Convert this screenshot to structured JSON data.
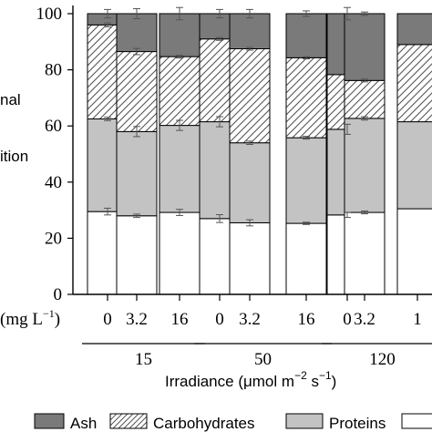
{
  "chart_data": {
    "type": "bar",
    "stacked": true,
    "percent_stacked": true,
    "ylim": [
      0,
      100
    ],
    "yticks": [
      0,
      20,
      40,
      60,
      80,
      100
    ],
    "ylabel_fragments": [
      "nal",
      "ition"
    ],
    "x_row1_label": "(mg L",
    "x_row1_label_sup": "−1",
    "x_row1_label_end": ")",
    "categories": [
      "0",
      "3.2",
      "16",
      "0",
      "3.2",
      "16",
      "0",
      "3.2",
      "1"
    ],
    "groups": [
      {
        "label": "15",
        "bars": [
          0,
          1,
          2
        ]
      },
      {
        "label": "50",
        "bars": [
          3,
          4,
          5
        ]
      },
      {
        "label": "120",
        "bars": [
          6,
          7,
          8
        ]
      }
    ],
    "xlabel": {
      "main": "Irradiance (μmol m",
      "sup1": "−2",
      "mid": " s",
      "sup2": "−1",
      "end": ")"
    },
    "series": [
      {
        "name": "",
        "values": [
          29.5,
          28,
          29.2,
          27,
          25.5,
          25.3,
          28.3,
          29.2,
          30.5
        ],
        "errors": [
          1.2,
          0.6,
          1.1,
          1.4,
          1.1,
          0.4,
          0.9,
          0.5,
          0
        ]
      },
      {
        "name": "Proteins",
        "values": [
          33,
          30,
          31,
          34.5,
          28.5,
          30.5,
          30.5,
          33.5,
          31
        ],
        "errors": [
          0.6,
          1.8,
          1.8,
          1.8,
          0.6,
          0.5,
          1.8,
          0.6,
          0
        ]
      },
      {
        "name": "Carbohydrates",
        "values": [
          33.5,
          28.5,
          24.5,
          29.5,
          33.5,
          28.5,
          19.5,
          13.5,
          27.5
        ],
        "errors": [
          0.7,
          1.1,
          0.5,
          0.5,
          0.5,
          0.4,
          0,
          0.5,
          0
        ]
      },
      {
        "name": "Ash",
        "values": [
          4,
          13.5,
          15.3,
          9,
          12.5,
          15.7,
          21.7,
          23.8,
          11
        ],
        "errors": [
          1.5,
          1.8,
          2.2,
          1.5,
          1.5,
          1,
          2.2,
          0.6,
          0
        ]
      }
    ],
    "colors": {
      "Ash": "#7a7a7a",
      "Proteins": "#c3c3c3",
      "bottom": "#ffffff",
      "Carbohydrates_bg": "#ffffff",
      "Carbohydrates_hatch": "#555555"
    },
    "legend": {
      "position": "bottom",
      "entries": [
        "Ash",
        "Carbohydrates",
        "Proteins",
        ""
      ]
    },
    "grid": false
  }
}
